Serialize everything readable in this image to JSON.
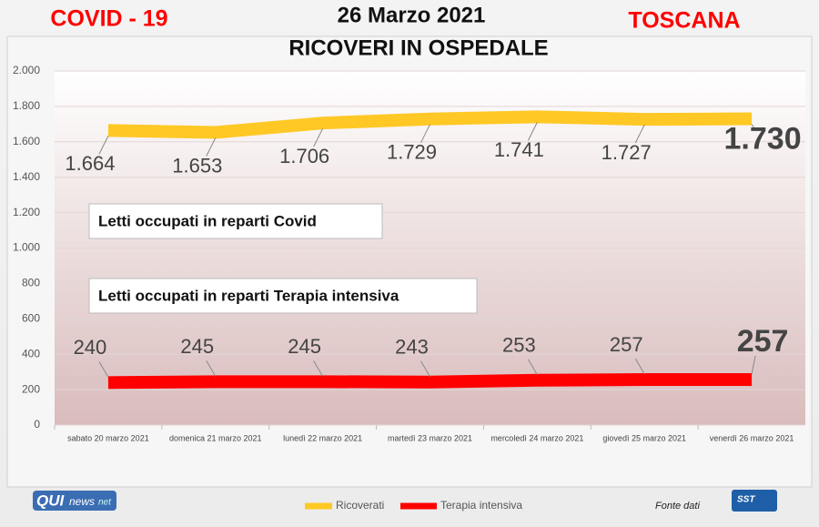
{
  "header": {
    "left": "COVID - 19",
    "date": "26 Marzo 2021",
    "title": "RICOVERI IN OSPEDALE",
    "right": "TOSCANA"
  },
  "chart_data": {
    "type": "line",
    "categories": [
      "sabato 20 marzo 2021",
      "domenica 21 marzo 2021",
      "lunedì 22 marzo 2021",
      "martedì 23 marzo 2021",
      "mercoledì 24 marzo 2021",
      "giovedì 25 marzo 2021",
      "venerdì 26 marzo 2021"
    ],
    "series": [
      {
        "name": "Ricoverati",
        "color": "#ffc825",
        "values": [
          1664,
          1653,
          1706,
          1729,
          1741,
          1727,
          1730
        ],
        "value_labels": [
          "1.664",
          "1.653",
          "1.706",
          "1.729",
          "1.741",
          "1.727",
          "1.730"
        ]
      },
      {
        "name": "Terapia intensiva",
        "color": "#ff0000",
        "values": [
          240,
          245,
          245,
          243,
          253,
          257,
          257
        ]
      }
    ],
    "ylim": [
      0,
      2000
    ],
    "yticks": [
      0,
      200,
      400,
      600,
      800,
      {
        "value": 1000,
        "label": "1.000"
      },
      {
        "value": 1200,
        "label": "1.200"
      },
      {
        "value": 1400,
        "label": "1.400"
      },
      {
        "value": 1600,
        "label": "1.600"
      },
      {
        "value": 1800,
        "label": "1.800"
      },
      {
        "value": 2000,
        "label": "2.000"
      }
    ],
    "annotations": [
      "Letti occupati in reparti Covid",
      "Letti occupati in reparti Terapia intensiva"
    ],
    "legend": "bottom"
  },
  "footer": {
    "logo_left": [
      "QUI",
      "news",
      "net"
    ],
    "source": "Fonte dati",
    "logo_right": "SST"
  }
}
